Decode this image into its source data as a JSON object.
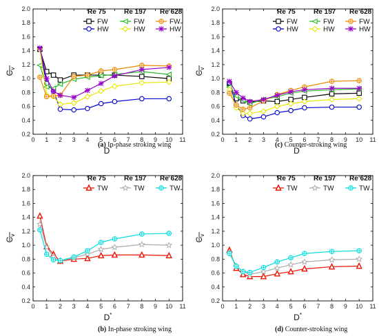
{
  "chart_data": [
    {
      "type": "line",
      "caption_letter": "(a)",
      "caption_text": " In-phase stroking wing",
      "xlabel": "D",
      "xlabel_sup": "*",
      "ylabel": "C",
      "ylabel_sub": "v",
      "xlim": [
        0,
        11
      ],
      "ylim": [
        0.2,
        2.0
      ],
      "xticks": [
        "0",
        "1",
        "2",
        "3",
        "4",
        "5",
        "6",
        "7",
        "8",
        "9",
        "10",
        "11"
      ],
      "yticks": [
        "0.2",
        "0.4",
        "0.6",
        "0.8",
        "1.0",
        "1.2",
        "1.4",
        "1.6",
        "1.8",
        "2.0"
      ],
      "legend_headers": [
        "Re 75",
        "Re 157",
        "Re 628"
      ],
      "series": [
        {
          "name": "FW",
          "re": "Re 75",
          "color": "#000000",
          "marker": "square",
          "x": [
            0.5,
            1,
            1.5,
            2,
            3,
            4,
            5,
            6,
            8,
            10
          ],
          "y": [
            1.42,
            1.1,
            1.05,
            0.98,
            1.05,
            1.05,
            1.05,
            1.05,
            1.03,
            1.0
          ]
        },
        {
          "name": "HW",
          "re": "Re 75",
          "color": "#0000cc",
          "marker": "circle",
          "x": [
            0.5,
            1,
            1.5,
            2,
            3,
            4,
            5,
            6,
            8,
            10
          ],
          "y": [
            1.42,
            0.93,
            0.82,
            0.56,
            0.55,
            0.57,
            0.64,
            0.67,
            0.71,
            0.71
          ]
        },
        {
          "name": "FW",
          "re": "Re 157",
          "color": "#22bb22",
          "marker": "triangle-left",
          "x": [
            0.5,
            1,
            1.5,
            2,
            3,
            4,
            5,
            6,
            8,
            10
          ],
          "y": [
            1.19,
            0.88,
            0.86,
            0.92,
            0.99,
            1.02,
            1.04,
            1.06,
            1.1,
            1.06
          ]
        },
        {
          "name": "HW",
          "re": "Re 157",
          "color": "#e8e800",
          "marker": "diamond",
          "x": [
            0.5,
            1,
            1.5,
            2,
            3,
            4,
            5,
            6,
            8,
            10
          ],
          "y": [
            1.42,
            0.76,
            0.74,
            0.63,
            0.65,
            0.74,
            0.82,
            0.89,
            0.94,
            0.95
          ]
        },
        {
          "name": "FW",
          "re": "Re 628",
          "color": "#ee8800",
          "marker": "circle-cross",
          "x": [
            0.5,
            1,
            1.5,
            2,
            3,
            4,
            5,
            6,
            8,
            10
          ],
          "y": [
            1.02,
            0.74,
            0.75,
            0.76,
            1.03,
            1.05,
            1.11,
            1.13,
            1.19,
            1.18
          ]
        },
        {
          "name": "HW",
          "re": "Re 628",
          "color": "#9900cc",
          "marker": "asterisk",
          "x": [
            0.5,
            1,
            1.5,
            2,
            3,
            4,
            5,
            6,
            8,
            10
          ],
          "y": [
            1.44,
            1.0,
            0.82,
            0.76,
            0.73,
            0.83,
            0.93,
            1.04,
            1.13,
            1.16
          ]
        }
      ]
    },
    {
      "type": "line",
      "caption_letter": "(c)",
      "caption_text": " Counter-stroking wing",
      "xlabel": "D",
      "xlabel_sup": "*",
      "ylabel": "C",
      "ylabel_sub": "v",
      "xlim": [
        0,
        11
      ],
      "ylim": [
        0.2,
        2.0
      ],
      "xticks": [
        "0",
        "1",
        "2",
        "3",
        "4",
        "5",
        "6",
        "7",
        "8",
        "9",
        "10",
        "11"
      ],
      "yticks": [
        "0.2",
        "0.4",
        "0.6",
        "0.8",
        "1.0",
        "1.2",
        "1.4",
        "1.6",
        "1.8",
        "2.0"
      ],
      "legend_headers": [
        "Re 75",
        "Re 157",
        "Re 628"
      ],
      "series": [
        {
          "name": "FW",
          "re": "Re 75",
          "color": "#000000",
          "marker": "square",
          "x": [
            0.5,
            1,
            1.5,
            2,
            3,
            4,
            5,
            6,
            8,
            10
          ],
          "y": [
            0.93,
            0.71,
            0.68,
            0.66,
            0.68,
            0.67,
            0.7,
            0.73,
            0.78,
            0.79
          ]
        },
        {
          "name": "HW",
          "re": "Re 75",
          "color": "#0000cc",
          "marker": "circle",
          "x": [
            0.5,
            1,
            1.5,
            2,
            3,
            4,
            5,
            6,
            8,
            10
          ],
          "y": [
            0.94,
            0.62,
            0.47,
            0.42,
            0.45,
            0.51,
            0.54,
            0.58,
            0.59,
            0.59
          ]
        },
        {
          "name": "FW",
          "re": "Re 157",
          "color": "#22bb22",
          "marker": "triangle-left",
          "x": [
            0.5,
            1,
            1.5,
            2,
            3,
            4,
            5,
            6,
            8,
            10
          ],
          "y": [
            0.88,
            0.75,
            0.69,
            0.64,
            0.7,
            0.74,
            0.79,
            0.82,
            0.84,
            0.85
          ]
        },
        {
          "name": "HW",
          "re": "Re 157",
          "color": "#e8e800",
          "marker": "diamond",
          "x": [
            0.5,
            1,
            1.5,
            2,
            3,
            4,
            5,
            6,
            8,
            10
          ],
          "y": [
            0.84,
            0.58,
            0.5,
            0.5,
            0.53,
            0.6,
            0.64,
            0.67,
            0.7,
            0.71
          ]
        },
        {
          "name": "FW",
          "re": "Re 628",
          "color": "#ee8800",
          "marker": "circle-cross",
          "x": [
            0.5,
            1,
            1.5,
            2,
            3,
            4,
            5,
            6,
            8,
            10
          ],
          "y": [
            0.79,
            0.62,
            0.56,
            0.58,
            0.68,
            0.77,
            0.83,
            0.88,
            0.96,
            0.97
          ]
        },
        {
          "name": "HW",
          "re": "Re 628",
          "color": "#9900cc",
          "marker": "asterisk",
          "x": [
            0.5,
            1,
            1.5,
            2,
            3,
            4,
            5,
            6,
            8,
            10
          ],
          "y": [
            0.96,
            0.8,
            0.72,
            0.67,
            0.7,
            0.76,
            0.81,
            0.84,
            0.86,
            0.86
          ]
        }
      ]
    },
    {
      "type": "line",
      "caption_letter": "(b)",
      "caption_text": " In-phase stroking wing",
      "xlabel": "D",
      "xlabel_sup": "*",
      "ylabel": "C",
      "ylabel_sub": "v",
      "xlim": [
        0,
        11
      ],
      "ylim": [
        0.2,
        2.0
      ],
      "xticks": [
        "0",
        "1",
        "2",
        "3",
        "4",
        "5",
        "6",
        "7",
        "8",
        "9",
        "10",
        "11"
      ],
      "yticks": [
        "0.2",
        "0.4",
        "0.6",
        "0.8",
        "1.0",
        "1.2",
        "1.4",
        "1.6",
        "1.8",
        "2.0"
      ],
      "legend_headers": [
        "Re 75",
        "Re 157",
        "Re 628"
      ],
      "series": [
        {
          "name": "TW",
          "re": "Re 75",
          "color": "#ee1100",
          "marker": "triangle",
          "x": [
            0.5,
            1,
            1.5,
            2,
            3,
            4,
            5,
            6,
            8,
            10
          ],
          "y": [
            1.42,
            0.98,
            0.87,
            0.77,
            0.8,
            0.81,
            0.85,
            0.86,
            0.86,
            0.85
          ]
        },
        {
          "name": "TW",
          "re": "Re 157",
          "color": "#aaaaaa",
          "marker": "star",
          "x": [
            0.5,
            1,
            1.5,
            2,
            3,
            4,
            5,
            6,
            8,
            10
          ],
          "y": [
            1.3,
            0.97,
            0.83,
            0.77,
            0.82,
            0.87,
            0.94,
            0.97,
            1.01,
            1.0
          ]
        },
        {
          "name": "TW",
          "re": "Re 628",
          "color": "#00dddd",
          "marker": "circle-cross",
          "x": [
            0.5,
            1,
            1.5,
            2,
            3,
            4,
            5,
            6,
            8,
            10
          ],
          "y": [
            1.22,
            0.87,
            0.79,
            0.78,
            0.83,
            0.92,
            1.04,
            1.09,
            1.16,
            1.17
          ]
        }
      ]
    },
    {
      "type": "line",
      "caption_letter": "(d)",
      "caption_text": " Counter-stroking wing",
      "xlabel": "D",
      "xlabel_sup": "*",
      "ylabel": "C",
      "ylabel_sub": "v",
      "xlim": [
        0,
        11
      ],
      "ylim": [
        0.2,
        2.0
      ],
      "xticks": [
        "0",
        "1",
        "2",
        "3",
        "4",
        "5",
        "6",
        "7",
        "8",
        "9",
        "10",
        "11"
      ],
      "yticks": [
        "0.2",
        "0.4",
        "0.6",
        "0.8",
        "1.0",
        "1.2",
        "1.4",
        "1.6",
        "1.8",
        "2.0"
      ],
      "legend_headers": [
        "Re 75",
        "Re 157",
        "Re 628"
      ],
      "series": [
        {
          "name": "TW",
          "re": "Re 75",
          "color": "#ee1100",
          "marker": "triangle",
          "x": [
            0.5,
            1,
            1.5,
            2,
            3,
            4,
            5,
            6,
            8,
            10
          ],
          "y": [
            0.93,
            0.67,
            0.58,
            0.55,
            0.55,
            0.59,
            0.62,
            0.66,
            0.69,
            0.7
          ]
        },
        {
          "name": "TW",
          "re": "Re 157",
          "color": "#aaaaaa",
          "marker": "star",
          "x": [
            0.5,
            1,
            1.5,
            2,
            3,
            4,
            5,
            6,
            8,
            10
          ],
          "y": [
            0.9,
            0.7,
            0.62,
            0.58,
            0.62,
            0.67,
            0.72,
            0.76,
            0.79,
            0.8
          ]
        },
        {
          "name": "TW",
          "re": "Re 628",
          "color": "#00dddd",
          "marker": "circle-cross",
          "x": [
            0.5,
            1,
            1.5,
            2,
            3,
            4,
            5,
            6,
            8,
            10
          ],
          "y": [
            0.88,
            0.7,
            0.62,
            0.61,
            0.68,
            0.76,
            0.82,
            0.88,
            0.91,
            0.92
          ]
        }
      ]
    }
  ]
}
